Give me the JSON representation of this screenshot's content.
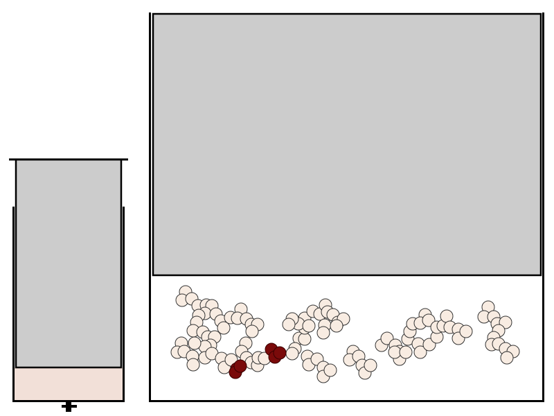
{
  "colors": {
    "background": "#ffffff",
    "wall": "#000000",
    "piston": "#cccccc",
    "small_liquid": "#f2e0d8",
    "molecule_fill": "#f8ece2",
    "molecule_stroke": "#333333",
    "marked_fill": "#7a0a0a",
    "marked_stroke": "#3a0000"
  },
  "small_container": {
    "piston": "gray-piston",
    "liquid": "pink-liquid",
    "valve": "valve-icon"
  },
  "large_container": {
    "piston": "gray-piston",
    "molecule_chains": 8,
    "marked_atoms": 6
  }
}
